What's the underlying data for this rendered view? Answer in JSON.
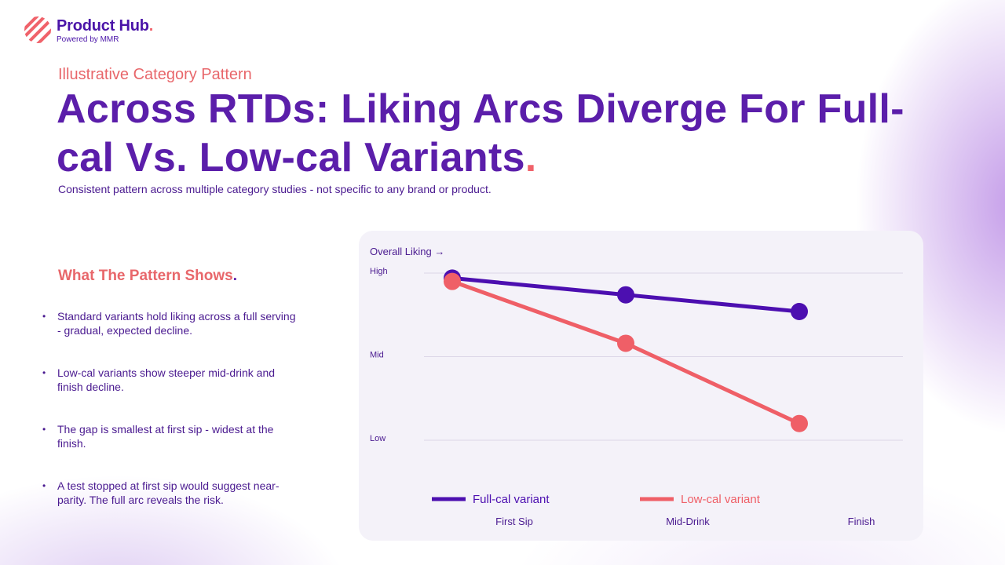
{
  "brand": {
    "name": "Product Hub",
    "dot": ".",
    "tagline": "Powered by MMR"
  },
  "header": {
    "eyebrow": "Illustrative Category Pattern",
    "title": "Across RTDs: Liking Arcs Diverge For Full-cal Vs. Low-cal Variants",
    "title_dot": ".",
    "subtitle": "Consistent pattern across multiple category studies - not specific to any brand or product."
  },
  "pattern": {
    "heading": "What The Pattern Shows",
    "heading_dot": ".",
    "bullets": [
      "Standard variants hold liking across a full serving - gradual, expected decline.",
      "Low-cal variants show steeper mid-drink and finish decline.",
      "The gap is smallest at first sip - widest at the finish.",
      "A test stopped at first sip would suggest near-parity. The full arc reveals the risk."
    ]
  },
  "colors": {
    "full_cal": "#4c0fb0",
    "low_cal": "#ef5f67"
  },
  "chart_data": {
    "type": "line",
    "ylabel": "Overall Liking →",
    "y_ticks": [
      "High",
      "Mid",
      "Low"
    ],
    "y_tick_values": [
      1,
      0.5,
      0
    ],
    "ylim": [
      0,
      1
    ],
    "categories": [
      "First Sip",
      "Mid-Drink",
      "Finish"
    ],
    "grid": true,
    "legend": "bottom",
    "series": [
      {
        "name": "Full-cal variant",
        "color": "#4c0fb0",
        "values": [
          0.97,
          0.87,
          0.77
        ]
      },
      {
        "name": "Low-cal variant",
        "color": "#ef5f67",
        "values": [
          0.95,
          0.58,
          0.1
        ]
      }
    ]
  }
}
